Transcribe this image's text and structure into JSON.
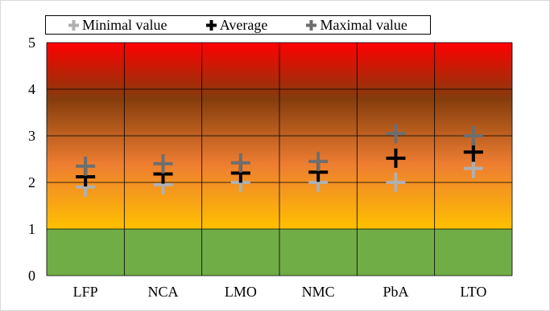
{
  "chart_data": {
    "type": "scatter",
    "categories": [
      "LFP",
      "NCA",
      "LMO",
      "NMC",
      "PbA",
      "LTO"
    ],
    "series": [
      {
        "name": "Minimal value",
        "values": [
          1.9,
          1.95,
          2.0,
          2.0,
          2.0,
          2.3
        ],
        "color": "#b0b0b0",
        "marker": "plus"
      },
      {
        "name": "Average",
        "values": [
          2.12,
          2.18,
          2.2,
          2.22,
          2.52,
          2.65
        ],
        "color": "#000000",
        "marker": "plus"
      },
      {
        "name": "Maximal value",
        "values": [
          2.35,
          2.4,
          2.42,
          2.45,
          3.05,
          3.0
        ],
        "color": "#6e6e6e",
        "marker": "plus"
      }
    ],
    "ylim": [
      0,
      5
    ],
    "yticks": [
      0,
      1,
      2,
      3,
      4,
      5
    ],
    "grid": true,
    "legend_position": "top",
    "background_bands": [
      {
        "from": 0,
        "to": 1,
        "color": "#70ad47"
      },
      {
        "from": 1,
        "to": 5,
        "gradient": [
          "#ffc000",
          "#ed7d31",
          "#843c0c",
          "#ff0000"
        ]
      }
    ]
  }
}
